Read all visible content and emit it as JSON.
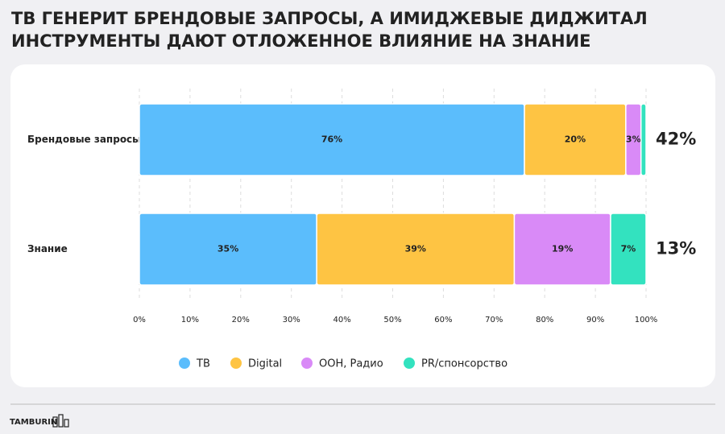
{
  "chart_data": {
    "type": "stacked-bar-horizontal",
    "title": [
      "ТВ ГЕНЕРИТ БРЕНДОВЫЕ ЗАПРОСЫ, А ИМИДЖЕВЫЕ ДИДЖИТАЛ",
      "ИНСТРУМЕНТЫ ДАЮТ ОТЛОЖЕННОЕ ВЛИЯНИЕ НА ЗНАНИЕ"
    ],
    "categories": [
      "Брендовые запросы",
      "Знание"
    ],
    "series": [
      {
        "name": "ТВ",
        "color": "#5bbdfc",
        "values": [
          76,
          35
        ],
        "value_labels": [
          "76%",
          "35%"
        ]
      },
      {
        "name": "Digital",
        "color": "#fec443",
        "values": [
          20,
          39
        ],
        "value_labels": [
          "20%",
          "39%"
        ]
      },
      {
        "name": "ООН, Радио",
        "color": "#d98af7",
        "values": [
          3,
          19
        ],
        "value_labels": [
          "3%",
          "19%"
        ]
      },
      {
        "name": "PR/спонсорство",
        "color": "#33e2bf",
        "values": [
          1,
          7
        ],
        "value_labels": [
          null,
          "7%"
        ]
      }
    ],
    "row_totals": [
      "42%",
      "13%"
    ],
    "xlim": [
      0,
      100
    ],
    "xticks": [
      {
        "value": 0,
        "label": "0%"
      },
      {
        "value": 10,
        "label": "10%"
      },
      {
        "value": 20,
        "label": "20%"
      },
      {
        "value": 30,
        "label": "30%"
      },
      {
        "value": 40,
        "label": "40%"
      },
      {
        "value": 50,
        "label": "50%"
      },
      {
        "value": 60,
        "label": "60%"
      },
      {
        "value": 70,
        "label": "70%"
      },
      {
        "value": 80,
        "label": "80%"
      },
      {
        "value": 90,
        "label": "90%"
      },
      {
        "value": 100,
        "label": "100%"
      }
    ],
    "grid": true,
    "legend": "bottom",
    "logo": "TAMBURIN"
  }
}
